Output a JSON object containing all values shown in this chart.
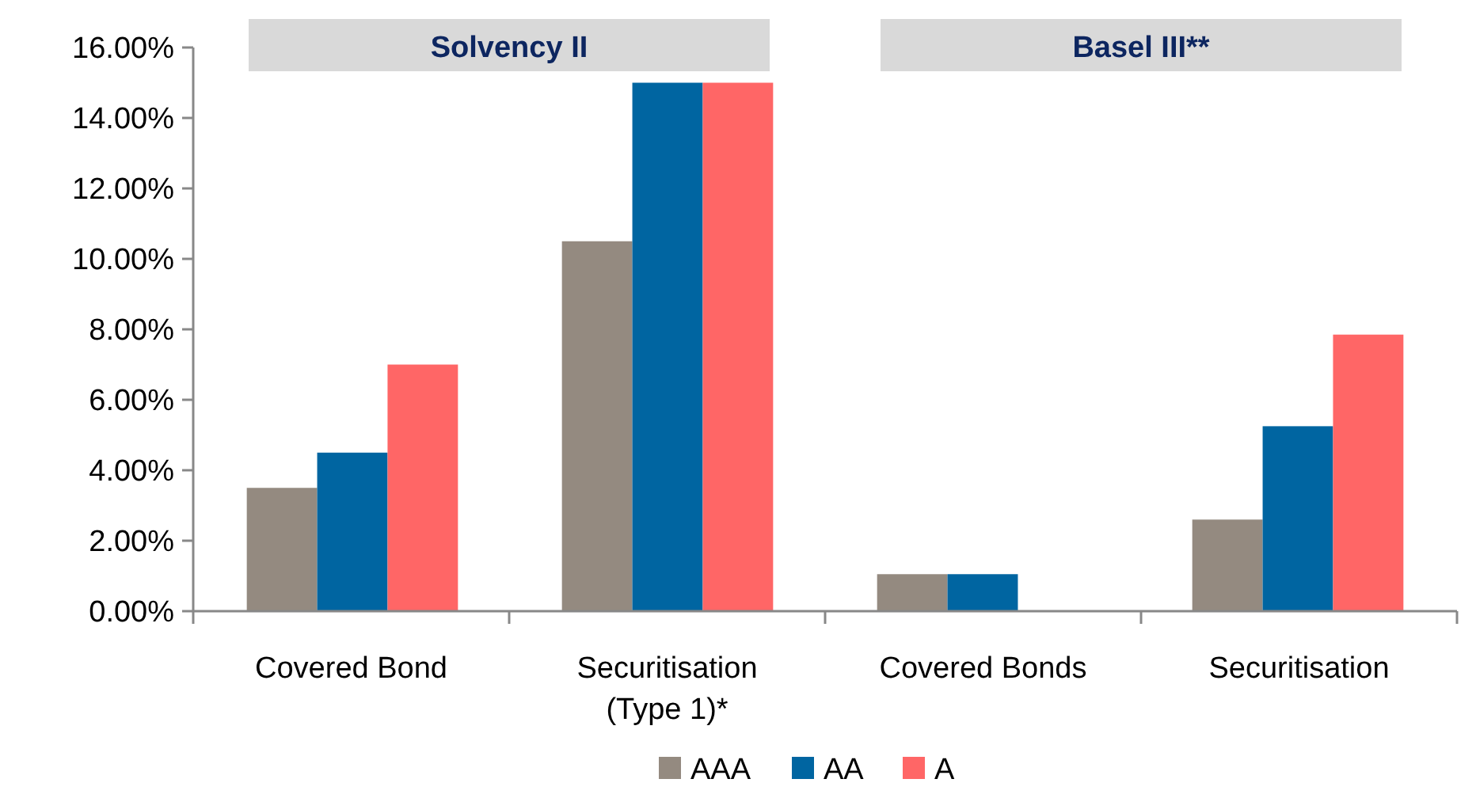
{
  "chart_data": {
    "type": "bar",
    "categories": [
      "Covered Bond",
      "Securitisation (Type 1)*",
      "Covered Bonds",
      "Securitisation"
    ],
    "series": [
      {
        "name": "AAA",
        "color": "#948a80",
        "values": [
          3.5,
          10.5,
          1.05,
          2.6
        ]
      },
      {
        "name": "AA",
        "color": "#0065a1",
        "values": [
          4.5,
          15,
          1.05,
          5.25
        ]
      },
      {
        "name": "A",
        "color": "#ff6666",
        "values": [
          7,
          15,
          null,
          7.85
        ]
      }
    ],
    "ylim": [
      0,
      16
    ],
    "yticks": [
      {
        "value": 0,
        "label": "0.00%"
      },
      {
        "value": 2,
        "label": "2.00%"
      },
      {
        "value": 4,
        "label": "4.00%"
      },
      {
        "value": 6,
        "label": "6.00%"
      },
      {
        "value": 8,
        "label": "8.00%"
      },
      {
        "value": 10,
        "label": "10.00%"
      },
      {
        "value": 12,
        "label": "12.00%"
      },
      {
        "value": 14,
        "label": "14.00%"
      },
      {
        "value": 16,
        "label": "16.00%"
      }
    ],
    "annotations": [
      "Solvency II",
      "Basel III**"
    ],
    "legend": "bottom",
    "grid": false
  }
}
